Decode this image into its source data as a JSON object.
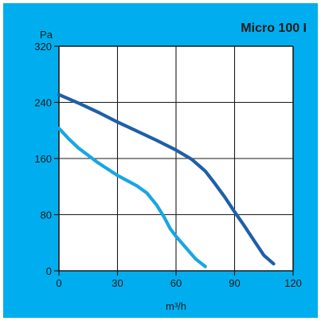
{
  "colors": {
    "panel_bg": "#00aeef",
    "plot_bg": "#ffffff",
    "grid": "#1a1a1a",
    "text": "#1a1a1a",
    "series_dark": "#1f5fa8",
    "series_light": "#1aa6e0"
  },
  "chart_data": {
    "type": "line",
    "title": "Micro 100 I",
    "xlabel": "m³/h",
    "ylabel": "Pa",
    "xlim": [
      0,
      120
    ],
    "ylim": [
      0,
      320
    ],
    "xticks": [
      "0",
      "30",
      "60",
      "90",
      "120"
    ],
    "yticks": [
      "0",
      "80",
      "160",
      "240",
      "320"
    ],
    "grid": true,
    "legend": "none",
    "series": [
      {
        "color": "#1f5fa8",
        "points": [
          [
            0,
            251
          ],
          [
            10,
            239
          ],
          [
            20,
            226
          ],
          [
            30,
            212
          ],
          [
            40,
            199
          ],
          [
            50,
            186
          ],
          [
            60,
            172
          ],
          [
            68,
            159
          ],
          [
            75,
            142
          ],
          [
            80,
            124
          ],
          [
            85,
            105
          ],
          [
            90,
            84
          ],
          [
            95,
            64
          ],
          [
            100,
            43
          ],
          [
            105,
            22
          ],
          [
            110,
            10
          ]
        ]
      },
      {
        "color": "#1aa6e0",
        "points": [
          [
            0,
            203
          ],
          [
            5,
            188
          ],
          [
            10,
            175
          ],
          [
            20,
            154
          ],
          [
            30,
            136
          ],
          [
            40,
            121
          ],
          [
            45,
            111
          ],
          [
            50,
            94
          ],
          [
            54,
            76
          ],
          [
            57,
            60
          ],
          [
            60,
            49
          ],
          [
            65,
            33
          ],
          [
            70,
            17
          ],
          [
            75,
            6
          ]
        ]
      }
    ]
  }
}
